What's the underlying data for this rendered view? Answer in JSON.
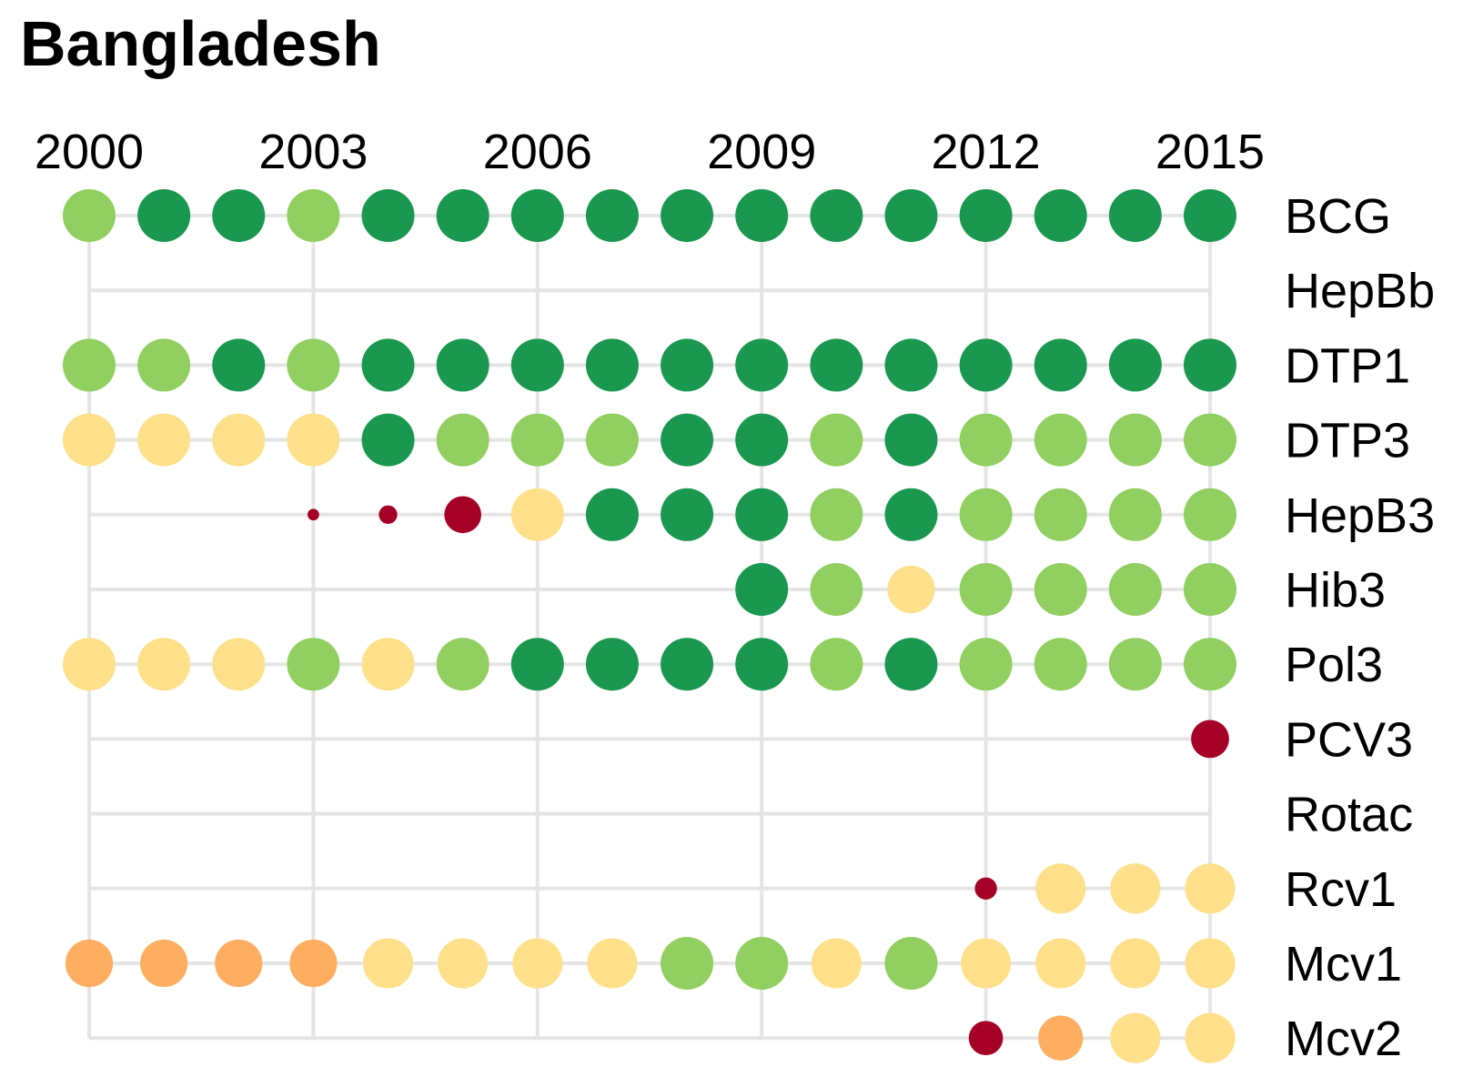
{
  "title": "Bangladesh",
  "chart_data": {
    "type": "scatter",
    "title": "Bangladesh",
    "xlabel": "",
    "ylabel": "",
    "x_axis_position": "top",
    "y_labels_position": "right",
    "grid": true,
    "x": [
      2000,
      2001,
      2002,
      2003,
      2004,
      2005,
      2006,
      2007,
      2008,
      2009,
      2010,
      2011,
      2012,
      2013,
      2014,
      2015
    ],
    "x_tick_labels": [
      "2000",
      "2003",
      "2006",
      "2009",
      "2012",
      "2015"
    ],
    "x_ticks": [
      2000,
      2003,
      2006,
      2009,
      2012,
      2015
    ],
    "xlim": [
      2000,
      2015
    ],
    "categories": [
      "BCG",
      "HepBb",
      "DTP1",
      "DTP3",
      "HepB3",
      "Hib3",
      "Pol3",
      "PCV3",
      "Rotac",
      "Rcv1",
      "Mcv1",
      "Mcv2"
    ],
    "legend": "none",
    "level_colors": {
      "1": "#a50026",
      "2": "#fdae61",
      "3": "#fee08b",
      "4": "#91cf60",
      "5": "#1a9850"
    },
    "size_note": "Marker size is relative (1 = full dot). Colour level 1-5 from dark red to dark green.",
    "series": [
      {
        "name": "BCG",
        "level": [
          4,
          5,
          5,
          4,
          5,
          5,
          5,
          5,
          5,
          5,
          5,
          5,
          5,
          5,
          5,
          5
        ],
        "size": [
          1,
          1,
          1,
          1,
          1,
          1,
          1,
          1,
          1,
          1,
          1,
          1,
          1,
          1,
          1,
          1
        ]
      },
      {
        "name": "HepBb",
        "level": [
          null,
          null,
          null,
          null,
          null,
          null,
          null,
          null,
          null,
          null,
          null,
          null,
          null,
          null,
          null,
          null
        ],
        "size": [
          null,
          null,
          null,
          null,
          null,
          null,
          null,
          null,
          null,
          null,
          null,
          null,
          null,
          null,
          null,
          null
        ]
      },
      {
        "name": "DTP1",
        "level": [
          4,
          4,
          5,
          4,
          5,
          5,
          5,
          5,
          5,
          5,
          5,
          5,
          5,
          5,
          5,
          5
        ],
        "size": [
          1,
          1,
          1,
          1,
          1,
          1,
          1,
          1,
          1,
          1,
          1,
          1,
          1,
          1,
          1,
          1
        ]
      },
      {
        "name": "DTP3",
        "level": [
          3,
          3,
          3,
          3,
          5,
          4,
          4,
          4,
          5,
          5,
          4,
          5,
          4,
          4,
          4,
          4
        ],
        "size": [
          1,
          1,
          1,
          1,
          1,
          1,
          1,
          1,
          1,
          1,
          1,
          1,
          1,
          1,
          1,
          1
        ]
      },
      {
        "name": "HepB3",
        "level": [
          null,
          null,
          null,
          1,
          1,
          1,
          3,
          5,
          5,
          5,
          4,
          5,
          4,
          4,
          4,
          4
        ],
        "size": [
          null,
          null,
          null,
          0.22,
          0.35,
          0.7,
          1,
          1,
          1,
          1,
          1,
          1,
          1,
          1,
          1,
          1
        ]
      },
      {
        "name": "Hib3",
        "level": [
          null,
          null,
          null,
          null,
          null,
          null,
          null,
          null,
          null,
          5,
          4,
          3,
          4,
          4,
          4,
          4
        ],
        "size": [
          null,
          null,
          null,
          null,
          null,
          null,
          null,
          null,
          null,
          1,
          1,
          0.9,
          1,
          1,
          1,
          1
        ]
      },
      {
        "name": "Pol3",
        "level": [
          3,
          3,
          3,
          4,
          3,
          4,
          5,
          5,
          5,
          5,
          4,
          5,
          4,
          4,
          4,
          4
        ],
        "size": [
          1,
          1,
          1,
          1,
          1,
          1,
          1,
          1,
          1,
          1,
          1,
          1,
          1,
          1,
          1,
          1
        ]
      },
      {
        "name": "PCV3",
        "level": [
          null,
          null,
          null,
          null,
          null,
          null,
          null,
          null,
          null,
          null,
          null,
          null,
          null,
          null,
          null,
          1
        ],
        "size": [
          null,
          null,
          null,
          null,
          null,
          null,
          null,
          null,
          null,
          null,
          null,
          null,
          null,
          null,
          null,
          0.72
        ]
      },
      {
        "name": "Rotac",
        "level": [
          null,
          null,
          null,
          null,
          null,
          null,
          null,
          null,
          null,
          null,
          null,
          null,
          null,
          null,
          null,
          null
        ],
        "size": [
          null,
          null,
          null,
          null,
          null,
          null,
          null,
          null,
          null,
          null,
          null,
          null,
          null,
          null,
          null,
          null
        ]
      },
      {
        "name": "Rcv1",
        "level": [
          null,
          null,
          null,
          null,
          null,
          null,
          null,
          null,
          null,
          null,
          null,
          null,
          1,
          3,
          3,
          3
        ],
        "size": [
          null,
          null,
          null,
          null,
          null,
          null,
          null,
          null,
          null,
          null,
          null,
          null,
          0.42,
          0.95,
          0.95,
          0.95
        ]
      },
      {
        "name": "Mcv1",
        "level": [
          2,
          2,
          2,
          2,
          3,
          3,
          3,
          3,
          4,
          4,
          3,
          4,
          3,
          3,
          3,
          3
        ],
        "size": [
          0.9,
          0.9,
          0.9,
          0.9,
          0.95,
          0.95,
          0.95,
          0.95,
          1,
          1,
          0.95,
          1,
          0.95,
          0.95,
          0.95,
          0.95
        ]
      },
      {
        "name": "Mcv2",
        "level": [
          null,
          null,
          null,
          null,
          null,
          null,
          null,
          null,
          null,
          null,
          null,
          null,
          1,
          2,
          3,
          3
        ],
        "size": [
          null,
          null,
          null,
          null,
          null,
          null,
          null,
          null,
          null,
          null,
          null,
          null,
          0.65,
          0.85,
          0.95,
          0.95
        ]
      }
    ]
  }
}
